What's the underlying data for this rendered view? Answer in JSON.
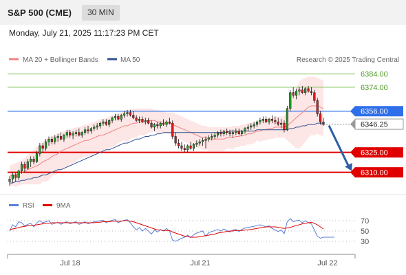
{
  "header": {
    "title": "S&P 500 (CME)",
    "interval": "30 MIN"
  },
  "datetime": "Monday, July 21, 2025 11:17:23 PM CET",
  "legend": {
    "ma20": {
      "label": "MA 20 + Bollinger Bands",
      "color": "#f08080"
    },
    "ma50": {
      "label": "MA 50",
      "color": "#2f4f8f"
    },
    "rsi": {
      "label": "RSI",
      "color": "#5b7fd6"
    },
    "rsi9": {
      "label": "9MA",
      "color": "#e00000"
    }
  },
  "copyright": "Research © 2025 Trading Central",
  "chart_data": {
    "type": "candlestick",
    "price_ylim": [
      6300,
      6390
    ],
    "levels": [
      {
        "value": 6384,
        "label": "6384.00",
        "kind": "resistance"
      },
      {
        "value": 6374,
        "label": "6374.00",
        "kind": "resistance"
      },
      {
        "value": 6356,
        "label": "6356.00",
        "kind": "pivot"
      },
      {
        "value": 6346.25,
        "label": "6346.25",
        "kind": "last"
      },
      {
        "value": 6325,
        "label": "6325.00",
        "kind": "support"
      },
      {
        "value": 6310,
        "label": "6310.00",
        "kind": "support"
      }
    ],
    "x_ticks": [
      "Jul 18",
      "Jul 21",
      "Jul 22"
    ],
    "rsi_ticks": [
      70,
      50,
      30
    ],
    "rsi_ylim": [
      10,
      90
    ],
    "candles": [
      [
        6303,
        6307,
        6300,
        6305
      ],
      [
        6305,
        6310,
        6302,
        6308
      ],
      [
        6308,
        6310,
        6303,
        6306
      ],
      [
        6306,
        6312,
        6304,
        6311
      ],
      [
        6311,
        6318,
        6309,
        6316
      ],
      [
        6316,
        6318,
        6310,
        6313
      ],
      [
        6313,
        6320,
        6312,
        6318
      ],
      [
        6318,
        6322,
        6314,
        6320
      ],
      [
        6320,
        6322,
        6316,
        6318
      ],
      [
        6318,
        6326,
        6317,
        6324
      ],
      [
        6324,
        6332,
        6322,
        6330
      ],
      [
        6330,
        6332,
        6325,
        6328
      ],
      [
        6328,
        6335,
        6326,
        6333
      ],
      [
        6333,
        6337,
        6330,
        6335
      ],
      [
        6335,
        6337,
        6331,
        6333
      ],
      [
        6333,
        6338,
        6331,
        6336
      ],
      [
        6336,
        6339,
        6333,
        6337
      ],
      [
        6337,
        6340,
        6334,
        6335
      ],
      [
        6335,
        6339,
        6333,
        6338
      ],
      [
        6338,
        6342,
        6336,
        6340
      ],
      [
        6340,
        6342,
        6336,
        6338
      ],
      [
        6338,
        6341,
        6335,
        6339
      ],
      [
        6339,
        6342,
        6337,
        6340
      ],
      [
        6340,
        6343,
        6337,
        6338
      ],
      [
        6338,
        6341,
        6336,
        6340
      ],
      [
        6340,
        6344,
        6338,
        6342
      ],
      [
        6342,
        6345,
        6339,
        6341
      ],
      [
        6341,
        6344,
        6339,
        6343
      ],
      [
        6343,
        6346,
        6341,
        6344
      ],
      [
        6344,
        6347,
        6342,
        6345
      ],
      [
        6345,
        6348,
        6343,
        6347
      ],
      [
        6347,
        6350,
        6345,
        6348
      ],
      [
        6348,
        6350,
        6345,
        6346
      ],
      [
        6346,
        6350,
        6344,
        6349
      ],
      [
        6349,
        6352,
        6347,
        6351
      ],
      [
        6351,
        6354,
        6349,
        6352
      ],
      [
        6352,
        6354,
        6349,
        6350
      ],
      [
        6350,
        6354,
        6348,
        6353
      ],
      [
        6353,
        6356,
        6351,
        6354
      ],
      [
        6354,
        6357,
        6352,
        6355
      ],
      [
        6355,
        6357,
        6352,
        6353
      ],
      [
        6353,
        6356,
        6350,
        6351
      ],
      [
        6351,
        6353,
        6348,
        6349
      ],
      [
        6349,
        6352,
        6347,
        6350
      ],
      [
        6350,
        6352,
        6347,
        6348
      ],
      [
        6348,
        6351,
        6346,
        6349
      ],
      [
        6349,
        6351,
        6346,
        6347
      ],
      [
        6347,
        6349,
        6343,
        6344
      ],
      [
        6344,
        6347,
        6341,
        6346
      ],
      [
        6346,
        6348,
        6343,
        6345
      ],
      [
        6345,
        6348,
        6343,
        6347
      ],
      [
        6347,
        6350,
        6345,
        6346
      ],
      [
        6346,
        6349,
        6344,
        6348
      ],
      [
        6348,
        6351,
        6346,
        6347
      ],
      [
        6347,
        6349,
        6335,
        6337
      ],
      [
        6337,
        6340,
        6330,
        6332
      ],
      [
        6332,
        6335,
        6328,
        6330
      ],
      [
        6330,
        6333,
        6326,
        6328
      ],
      [
        6328,
        6331,
        6325,
        6327
      ],
      [
        6327,
        6331,
        6325,
        6330
      ],
      [
        6330,
        6333,
        6327,
        6328
      ],
      [
        6328,
        6332,
        6326,
        6331
      ],
      [
        6331,
        6334,
        6329,
        6332
      ],
      [
        6332,
        6335,
        6330,
        6333
      ],
      [
        6333,
        6336,
        6330,
        6334
      ],
      [
        6334,
        6337,
        6328,
        6335
      ],
      [
        6335,
        6338,
        6333,
        6336
      ],
      [
        6336,
        6339,
        6334,
        6337
      ],
      [
        6337,
        6340,
        6335,
        6338
      ],
      [
        6338,
        6341,
        6336,
        6340
      ],
      [
        6340,
        6342,
        6337,
        6339
      ],
      [
        6339,
        6342,
        6337,
        6341
      ],
      [
        6341,
        6343,
        6338,
        6340
      ],
      [
        6340,
        6342,
        6337,
        6339
      ],
      [
        6339,
        6342,
        6336,
        6340
      ],
      [
        6340,
        6343,
        6338,
        6341
      ],
      [
        6341,
        6343,
        6338,
        6339
      ],
      [
        6339,
        6342,
        6337,
        6341
      ],
      [
        6341,
        6344,
        6339,
        6343
      ],
      [
        6343,
        6346,
        6341,
        6344
      ],
      [
        6344,
        6347,
        6342,
        6345
      ],
      [
        6345,
        6348,
        6343,
        6346
      ],
      [
        6346,
        6349,
        6344,
        6348
      ],
      [
        6348,
        6351,
        6346,
        6349
      ],
      [
        6349,
        6352,
        6347,
        6350
      ],
      [
        6350,
        6352,
        6347,
        6348
      ],
      [
        6348,
        6351,
        6346,
        6350
      ],
      [
        6350,
        6353,
        6347,
        6349
      ],
      [
        6349,
        6352,
        6346,
        6348
      ],
      [
        6348,
        6351,
        6345,
        6346
      ],
      [
        6346,
        6350,
        6343,
        6347
      ],
      [
        6347,
        6349,
        6340,
        6342
      ],
      [
        6342,
        6360,
        6341,
        6358
      ],
      [
        6358,
        6372,
        6356,
        6370
      ],
      [
        6370,
        6374,
        6366,
        6368
      ],
      [
        6368,
        6373,
        6365,
        6371
      ],
      [
        6371,
        6374,
        6368,
        6372
      ],
      [
        6372,
        6375,
        6369,
        6370
      ],
      [
        6370,
        6374,
        6368,
        6373
      ],
      [
        6373,
        6375,
        6370,
        6371
      ],
      [
        6371,
        6374,
        6368,
        6370
      ],
      [
        6370,
        6372,
        6362,
        6364
      ],
      [
        6364,
        6366,
        6352,
        6354
      ],
      [
        6354,
        6356,
        6346,
        6348
      ],
      [
        6348,
        6351,
        6345,
        6346
      ]
    ],
    "ma20": [
      6307,
      6308,
      6308,
      6309,
      6310,
      6311,
      6312,
      6313,
      6314,
      6315,
      6316,
      6318,
      6319,
      6320,
      6322,
      6323,
      6324,
      6326,
      6327,
      6328,
      6329,
      6330,
      6331,
      6332,
      6333,
      6334,
      6334,
      6335,
      6336,
      6337,
      6338,
      6338,
      6339,
      6340,
      6341,
      6342,
      6343,
      6344,
      6345,
      6345,
      6346,
      6347,
      6347,
      6348,
      6348,
      6348,
      6349,
      6349,
      6349,
      6348,
      6348,
      6348,
      6347,
      6347,
      6346,
      6345,
      6344,
      6343,
      6342,
      6341,
      6340,
      6339,
      6338,
      6337,
      6336,
      6336,
      6335,
      6335,
      6335,
      6335,
      6335,
      6335,
      6336,
      6336,
      6336,
      6337,
      6337,
      6338,
      6338,
      6339,
      6339,
      6340,
      6341,
      6341,
      6342,
      6342,
      6343,
      6343,
      6344,
      6344,
      6344,
      6344,
      6345,
      6347,
      6349,
      6351,
      6353,
      6355,
      6357,
      6359,
      6360,
      6360,
      6360,
      6359,
      6358
    ],
    "ma50": [
      6302,
      6302,
      6303,
      6303,
      6304,
      6304,
      6305,
      6305,
      6306,
      6306,
      6307,
      6308,
      6308,
      6309,
      6310,
      6311,
      6312,
      6312,
      6313,
      6314,
      6315,
      6316,
      6317,
      6318,
      6319,
      6320,
      6321,
      6322,
      6323,
      6324,
      6325,
      6326,
      6327,
      6327,
      6328,
      6329,
      6330,
      6331,
      6332,
      6332,
      6333,
      6334,
      6335,
      6335,
      6336,
      6337,
      6337,
      6338,
      6338,
      6339,
      6339,
      6340,
      6340,
      6340,
      6340,
      6340,
      6340,
      6340,
      6340,
      6340,
      6340,
      6340,
      6340,
      6340,
      6340,
      6340,
      6340,
      6340,
      6340,
      6340,
      6340,
      6340,
      6340,
      6341,
      6341,
      6341,
      6341,
      6341,
      6341,
      6341,
      6341,
      6341,
      6342,
      6342,
      6342,
      6342,
      6342,
      6342,
      6342,
      6342,
      6342,
      6342,
      6342,
      6343,
      6343,
      6344,
      6344,
      6345,
      6345,
      6346,
      6346,
      6346,
      6347,
      6347,
      6347
    ],
    "bb_upper": [
      6315,
      6316,
      6317,
      6318,
      6319,
      6321,
      6323,
      6325,
      6327,
      6329,
      6331,
      6333,
      6335,
      6336,
      6337,
      6338,
      6339,
      6340,
      6341,
      6342,
      6342,
      6343,
      6344,
      6344,
      6345,
      6346,
      6346,
      6347,
      6348,
      6349,
      6350,
      6350,
      6351,
      6352,
      6353,
      6354,
      6354,
      6355,
      6356,
      6357,
      6357,
      6358,
      6358,
      6358,
      6358,
      6358,
      6358,
      6358,
      6357,
      6357,
      6356,
      6356,
      6355,
      6355,
      6355,
      6354,
      6353,
      6352,
      6351,
      6350,
      6349,
      6348,
      6347,
      6346,
      6345,
      6345,
      6344,
      6344,
      6344,
      6344,
      6344,
      6344,
      6344,
      6344,
      6345,
      6345,
      6345,
      6346,
      6346,
      6347,
      6347,
      6348,
      6348,
      6349,
      6350,
      6350,
      6351,
      6351,
      6352,
      6352,
      6352,
      6352,
      6356,
      6362,
      6368,
      6374,
      6378,
      6380,
      6381,
      6382,
      6382,
      6382,
      6381,
      6380,
      6379
    ],
    "bb_lower": [
      6299,
      6300,
      6299,
      6300,
      6301,
      6301,
      6301,
      6301,
      6301,
      6301,
      6301,
      6303,
      6303,
      6304,
      6307,
      6308,
      6309,
      6312,
      6313,
      6314,
      6316,
      6317,
      6318,
      6320,
      6321,
      6322,
      6322,
      6323,
      6324,
      6325,
      6326,
      6326,
      6327,
      6328,
      6329,
      6330,
      6332,
      6333,
      6334,
      6333,
      6335,
      6336,
      6336,
      6338,
      6338,
      6338,
      6340,
      6340,
      6341,
      6339,
      6340,
      6340,
      6339,
      6339,
      6337,
      6336,
      6335,
      6334,
      6333,
      6332,
      6331,
      6330,
      6329,
      6328,
      6327,
      6327,
      6326,
      6326,
      6326,
      6326,
      6326,
      6326,
      6328,
      6328,
      6327,
      6329,
      6329,
      6330,
      6330,
      6331,
      6331,
      6332,
      6334,
      6333,
      6334,
      6334,
      6335,
      6335,
      6336,
      6336,
      6336,
      6336,
      6334,
      6332,
      6330,
      6328,
      6328,
      6330,
      6333,
      6336,
      6338,
      6338,
      6339,
      6338,
      6337
    ],
    "rsi": [
      50,
      62,
      58,
      68,
      66,
      60,
      63,
      65,
      58,
      66,
      70,
      66,
      68,
      70,
      63,
      65,
      67,
      63,
      66,
      68,
      64,
      66,
      68,
      63,
      65,
      68,
      64,
      66,
      68,
      69,
      70,
      71,
      66,
      69,
      71,
      72,
      66,
      69,
      71,
      72,
      66,
      58,
      52,
      57,
      50,
      55,
      50,
      44,
      52,
      48,
      53,
      50,
      55,
      50,
      32,
      30,
      33,
      36,
      38,
      42,
      37,
      43,
      46,
      48,
      50,
      40,
      47,
      49,
      51,
      53,
      50,
      54,
      51,
      48,
      52,
      53,
      49,
      53,
      56,
      57,
      58,
      59,
      61,
      62,
      60,
      58,
      60,
      55,
      52,
      49,
      52,
      45,
      68,
      74,
      68,
      70,
      71,
      66,
      70,
      66,
      64,
      52,
      40,
      36,
      38
    ],
    "rsi9": [
      52,
      54,
      55,
      57,
      58,
      59,
      60,
      61,
      61,
      62,
      63,
      64,
      65,
      65,
      66,
      66,
      66,
      66,
      66,
      66,
      66,
      66,
      66,
      66,
      66,
      66,
      66,
      66,
      66,
      67,
      67,
      68,
      68,
      68,
      69,
      69,
      69,
      69,
      70,
      70,
      69,
      68,
      66,
      64,
      62,
      60,
      58,
      56,
      54,
      52,
      52,
      51,
      51,
      51,
      48,
      46,
      44,
      42,
      40,
      39,
      38,
      38,
      38,
      39,
      40,
      41,
      42,
      43,
      44,
      46,
      47,
      48,
      49,
      50,
      50,
      51,
      51,
      51,
      52,
      52,
      53,
      54,
      55,
      56,
      57,
      58,
      58,
      58,
      58,
      57,
      56,
      55,
      56,
      57,
      59,
      61,
      62,
      64,
      65,
      66,
      67,
      65,
      62,
      58,
      54
    ]
  }
}
